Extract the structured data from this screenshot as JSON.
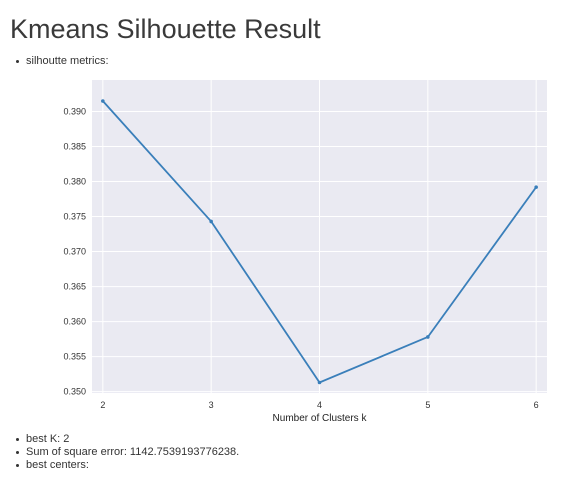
{
  "page": {
    "title": "Kmeans Silhouette Result",
    "metrics_label": "silhoutte metrics:",
    "results": [
      "best K: 2",
      "Sum of square error: 1142.7539193776238.",
      "best centers:"
    ]
  },
  "chart_data": {
    "type": "line",
    "xlabel": "Number of Clusters k",
    "ylabel": "",
    "x": [
      2,
      3,
      4,
      5,
      6
    ],
    "series": [
      {
        "values": [
          0.3915,
          0.3743,
          0.3513,
          0.3578,
          0.3792
        ]
      }
    ],
    "xlim": [
      1.9,
      6.1
    ],
    "ylim": [
      0.3498,
      0.3945
    ],
    "xticks": [
      "2",
      "3",
      "4",
      "5",
      "6"
    ],
    "yticks": [
      "0.350",
      "0.355",
      "0.360",
      "0.365",
      "0.370",
      "0.375",
      "0.380",
      "0.385",
      "0.390"
    ],
    "grid": true,
    "colors": {
      "line": "#3a7fba",
      "background": "#eaeaf2",
      "grid": "#ffffff"
    }
  }
}
